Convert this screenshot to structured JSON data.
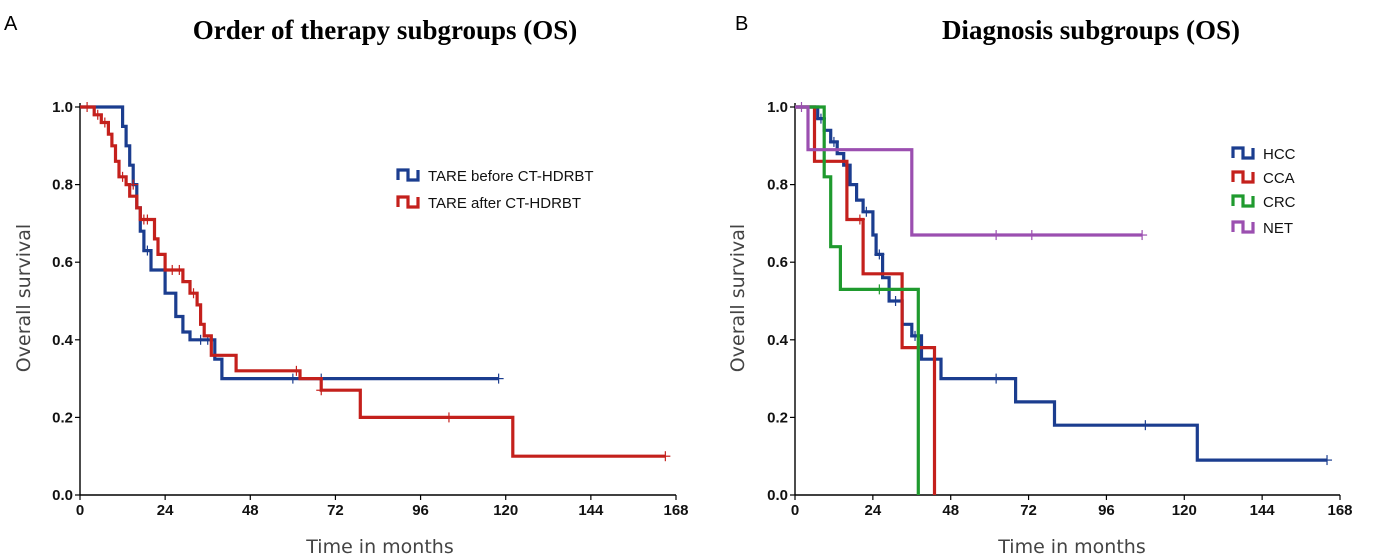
{
  "panels": {
    "a": {
      "letter": "A",
      "title": "Order of therapy subgroups (OS)",
      "xlabel": "Time in months",
      "ylabel": "Overall survival",
      "legend": [
        "TARE before CT-HDRBT",
        "TARE after CT-HDRBT"
      ]
    },
    "b": {
      "letter": "B",
      "title": "Diagnosis subgroups (OS)",
      "xlabel": "Time in months",
      "ylabel": "Overall survival",
      "legend": [
        "HCC",
        "CCA",
        "CRC",
        "NET"
      ]
    }
  },
  "colors": {
    "blue": "#1b3d8f",
    "red": "#c4201c",
    "green": "#1f9a2e",
    "purple": "#9b4fb0"
  },
  "chart_data": [
    {
      "type": "line",
      "step": true,
      "title": "Order of therapy subgroups (OS)",
      "xlabel": "Time in months",
      "ylabel": "Overall survival",
      "xlim": [
        0,
        168
      ],
      "ylim": [
        0,
        1.0
      ],
      "xticks": [
        0,
        24,
        48,
        72,
        96,
        120,
        144,
        168
      ],
      "yticks": [
        0.0,
        0.2,
        0.4,
        0.6,
        0.8,
        1.0
      ],
      "xtick_labels": [
        "0",
        "24",
        "48",
        "72",
        "96",
        "120",
        "144",
        "168"
      ],
      "ytick_labels": [
        "0.0",
        "0.2",
        "0.4",
        "0.6",
        "0.8",
        "1.0"
      ],
      "legend_position": "top-right",
      "series": [
        {
          "name": "TARE before CT-HDRBT",
          "color": "#1b3d8f",
          "points": [
            [
              0,
              1.0
            ],
            [
              12,
              1.0
            ],
            [
              12,
              0.95
            ],
            [
              13,
              0.95
            ],
            [
              13,
              0.9
            ],
            [
              14,
              0.9
            ],
            [
              14,
              0.85
            ],
            [
              15,
              0.85
            ],
            [
              15,
              0.8
            ],
            [
              16,
              0.8
            ],
            [
              16,
              0.74
            ],
            [
              17,
              0.74
            ],
            [
              17,
              0.68
            ],
            [
              18,
              0.68
            ],
            [
              18,
              0.63
            ],
            [
              20,
              0.63
            ],
            [
              20,
              0.58
            ],
            [
              24,
              0.58
            ],
            [
              24,
              0.52
            ],
            [
              27,
              0.52
            ],
            [
              27,
              0.46
            ],
            [
              29,
              0.46
            ],
            [
              29,
              0.42
            ],
            [
              31,
              0.42
            ],
            [
              31,
              0.4
            ],
            [
              38,
              0.4
            ],
            [
              38,
              0.35
            ],
            [
              40,
              0.35
            ],
            [
              40,
              0.3
            ],
            [
              118,
              0.3
            ]
          ],
          "censored": [
            [
              19,
              0.63
            ],
            [
              34,
              0.4
            ],
            [
              36,
              0.4
            ],
            [
              60,
              0.3
            ],
            [
              68,
              0.3
            ],
            [
              118,
              0.3
            ]
          ]
        },
        {
          "name": "TARE after CT-HDRBT",
          "color": "#c4201c",
          "points": [
            [
              0,
              1.0
            ],
            [
              4,
              1.0
            ],
            [
              4,
              0.98
            ],
            [
              6,
              0.98
            ],
            [
              6,
              0.96
            ],
            [
              8,
              0.96
            ],
            [
              8,
              0.93
            ],
            [
              9,
              0.93
            ],
            [
              9,
              0.9
            ],
            [
              10,
              0.9
            ],
            [
              10,
              0.86
            ],
            [
              11,
              0.86
            ],
            [
              11,
              0.82
            ],
            [
              13,
              0.82
            ],
            [
              13,
              0.8
            ],
            [
              14,
              0.8
            ],
            [
              14,
              0.77
            ],
            [
              16,
              0.77
            ],
            [
              16,
              0.74
            ],
            [
              17,
              0.74
            ],
            [
              17,
              0.71
            ],
            [
              21,
              0.71
            ],
            [
              21,
              0.66
            ],
            [
              22,
              0.66
            ],
            [
              22,
              0.62
            ],
            [
              24,
              0.62
            ],
            [
              24,
              0.58
            ],
            [
              29,
              0.58
            ],
            [
              29,
              0.55
            ],
            [
              31,
              0.55
            ],
            [
              31,
              0.52
            ],
            [
              33,
              0.52
            ],
            [
              33,
              0.49
            ],
            [
              34,
              0.49
            ],
            [
              34,
              0.44
            ],
            [
              35,
              0.44
            ],
            [
              35,
              0.41
            ],
            [
              37,
              0.41
            ],
            [
              37,
              0.36
            ],
            [
              44,
              0.36
            ],
            [
              44,
              0.32
            ],
            [
              62,
              0.32
            ],
            [
              62,
              0.3
            ],
            [
              68,
              0.3
            ],
            [
              68,
              0.27
            ],
            [
              79,
              0.27
            ],
            [
              79,
              0.2
            ],
            [
              122,
              0.2
            ],
            [
              122,
              0.1
            ],
            [
              165,
              0.1
            ]
          ],
          "censored": [
            [
              2,
              1.0
            ],
            [
              5,
              0.98
            ],
            [
              7,
              0.96
            ],
            [
              12,
              0.82
            ],
            [
              15,
              0.8
            ],
            [
              18,
              0.71
            ],
            [
              19,
              0.71
            ],
            [
              26,
              0.58
            ],
            [
              28,
              0.58
            ],
            [
              32,
              0.52
            ],
            [
              61,
              0.32
            ],
            [
              68,
              0.27
            ],
            [
              104,
              0.2
            ],
            [
              165,
              0.1
            ]
          ]
        }
      ]
    },
    {
      "type": "line",
      "step": true,
      "title": "Diagnosis subgroups (OS)",
      "xlabel": "Time in months",
      "ylabel": "Overall survival",
      "xlim": [
        0,
        168
      ],
      "ylim": [
        0,
        1.0
      ],
      "xticks": [
        0,
        24,
        48,
        72,
        96,
        120,
        144,
        168
      ],
      "yticks": [
        0.0,
        0.2,
        0.4,
        0.6,
        0.8,
        1.0
      ],
      "xtick_labels": [
        "0",
        "24",
        "48",
        "72",
        "96",
        "120",
        "144",
        "168"
      ],
      "ytick_labels": [
        "0.0",
        "0.2",
        "0.4",
        "0.6",
        "0.8",
        "1.0"
      ],
      "legend_position": "top-right",
      "series": [
        {
          "name": "HCC",
          "color": "#1b3d8f",
          "points": [
            [
              0,
              1.0
            ],
            [
              7,
              1.0
            ],
            [
              7,
              0.97
            ],
            [
              9,
              0.97
            ],
            [
              9,
              0.94
            ],
            [
              11,
              0.94
            ],
            [
              11,
              0.91
            ],
            [
              13,
              0.91
            ],
            [
              13,
              0.88
            ],
            [
              15,
              0.88
            ],
            [
              15,
              0.85
            ],
            [
              17,
              0.85
            ],
            [
              17,
              0.8
            ],
            [
              19,
              0.8
            ],
            [
              19,
              0.76
            ],
            [
              21,
              0.76
            ],
            [
              21,
              0.73
            ],
            [
              24,
              0.73
            ],
            [
              24,
              0.67
            ],
            [
              25,
              0.67
            ],
            [
              25,
              0.62
            ],
            [
              27,
              0.62
            ],
            [
              27,
              0.56
            ],
            [
              29,
              0.56
            ],
            [
              29,
              0.5
            ],
            [
              33,
              0.5
            ],
            [
              33,
              0.44
            ],
            [
              36,
              0.44
            ],
            [
              36,
              0.41
            ],
            [
              39,
              0.41
            ],
            [
              39,
              0.35
            ],
            [
              45,
              0.35
            ],
            [
              45,
              0.3
            ],
            [
              68,
              0.3
            ],
            [
              68,
              0.24
            ],
            [
              80,
              0.24
            ],
            [
              80,
              0.18
            ],
            [
              124,
              0.18
            ],
            [
              124,
              0.09
            ],
            [
              164,
              0.09
            ]
          ],
          "censored": [
            [
              8,
              0.97
            ],
            [
              12,
              0.91
            ],
            [
              22,
              0.73
            ],
            [
              26,
              0.62
            ],
            [
              31,
              0.5
            ],
            [
              37,
              0.41
            ],
            [
              62,
              0.3
            ],
            [
              108,
              0.18
            ],
            [
              164,
              0.09
            ]
          ]
        },
        {
          "name": "CCA",
          "color": "#c4201c",
          "points": [
            [
              0,
              1.0
            ],
            [
              6,
              1.0
            ],
            [
              6,
              0.86
            ],
            [
              16,
              0.86
            ],
            [
              16,
              0.71
            ],
            [
              21,
              0.71
            ],
            [
              21,
              0.57
            ],
            [
              33,
              0.57
            ],
            [
              33,
              0.38
            ],
            [
              43,
              0.38
            ],
            [
              43,
              0.0
            ]
          ],
          "censored": [
            [
              20,
              0.71
            ]
          ]
        },
        {
          "name": "CRC",
          "color": "#1f9a2e",
          "points": [
            [
              0,
              1.0
            ],
            [
              9,
              1.0
            ],
            [
              9,
              0.82
            ],
            [
              11,
              0.82
            ],
            [
              11,
              0.64
            ],
            [
              14,
              0.64
            ],
            [
              14,
              0.53
            ],
            [
              38,
              0.53
            ],
            [
              38,
              0.0
            ]
          ],
          "censored": [
            [
              26,
              0.53
            ]
          ]
        },
        {
          "name": "NET",
          "color": "#9b4fb0",
          "points": [
            [
              0,
              1.0
            ],
            [
              4,
              1.0
            ],
            [
              4,
              0.89
            ],
            [
              36,
              0.89
            ],
            [
              36,
              0.67
            ],
            [
              107,
              0.67
            ]
          ],
          "censored": [
            [
              2,
              1.0
            ],
            [
              62,
              0.67
            ],
            [
              73,
              0.67
            ],
            [
              107,
              0.67
            ]
          ]
        }
      ]
    }
  ]
}
